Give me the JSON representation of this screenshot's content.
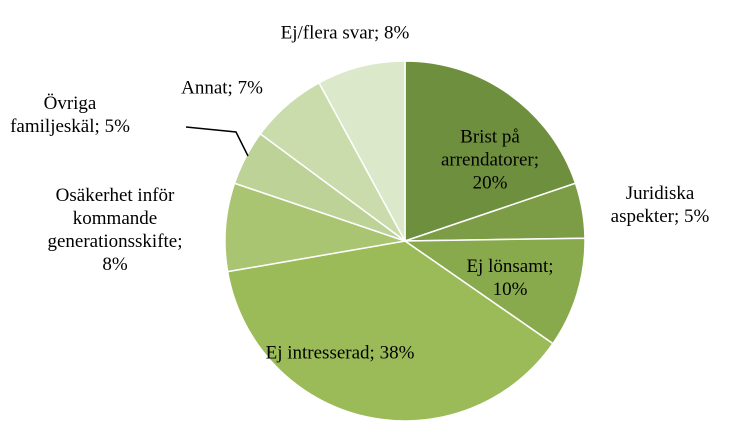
{
  "chart_data": {
    "type": "pie",
    "categories": [
      "Brist på arrendatorer;",
      "Juridiska aspekter;",
      "Ej lönsamt;",
      "Ej intresserad;",
      "Osäkerhet inför kommande generations­skifte;",
      "Övriga familjeskäl;",
      "Annat;",
      "Ej/flera svar;"
    ],
    "values": [
      20,
      5,
      10,
      38,
      8,
      5,
      7,
      8
    ],
    "value_labels": [
      "20%",
      "5%",
      "10%",
      "38%",
      "8%",
      "5%",
      "7%",
      "8%"
    ],
    "colors": [
      "#6e8f3d",
      "#7c9d45",
      "#88aa4d",
      "#9bbb59",
      "#a9c572",
      "#bdd297",
      "#cadcac",
      "#dce8ca"
    ]
  }
}
